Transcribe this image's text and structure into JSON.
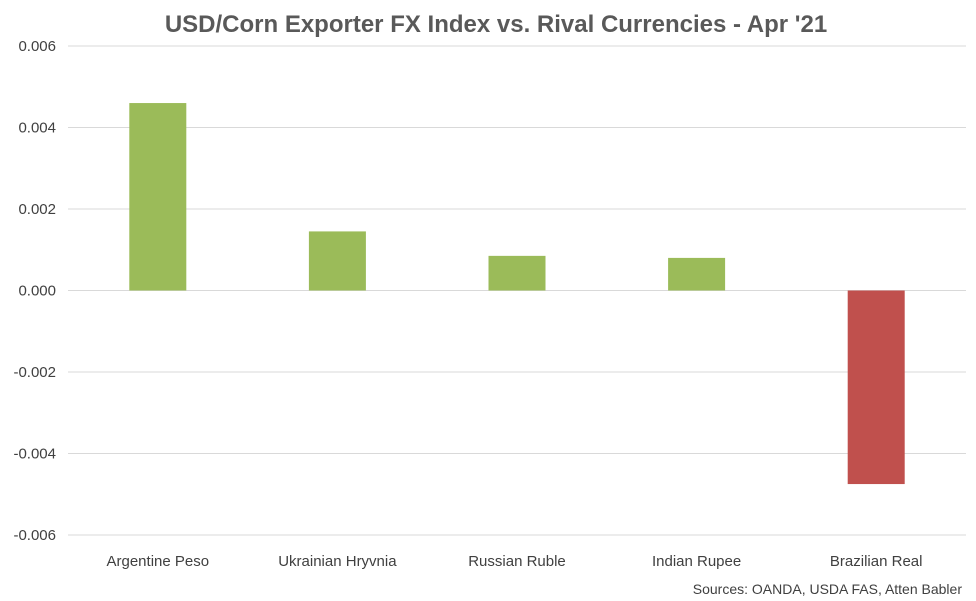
{
  "chart_data": {
    "type": "bar",
    "title": "USD/Corn Exporter FX Index vs. Rival Currencies - Apr '21",
    "categories": [
      "Argentine Peso",
      "Ukrainian Hryvnia",
      "Russian Ruble",
      "Indian Rupee",
      "Brazilian Real"
    ],
    "values": [
      0.0046,
      0.00145,
      0.00085,
      0.0008,
      -0.00475
    ],
    "ylim": [
      -0.006,
      0.006
    ],
    "yticks": [
      0.006,
      0.004,
      0.002,
      0.0,
      -0.002,
      -0.004,
      -0.006
    ],
    "ytick_labels": [
      "0.006",
      "0.004",
      "0.002",
      "0.000",
      "-0.002",
      "-0.004",
      "-0.006"
    ],
    "grid": true,
    "legend": "none",
    "colors": {
      "positive": "#9BBB59",
      "negative": "#C0504D"
    },
    "source": "Sources: OANDA, USDA FAS, Atten Babler"
  }
}
